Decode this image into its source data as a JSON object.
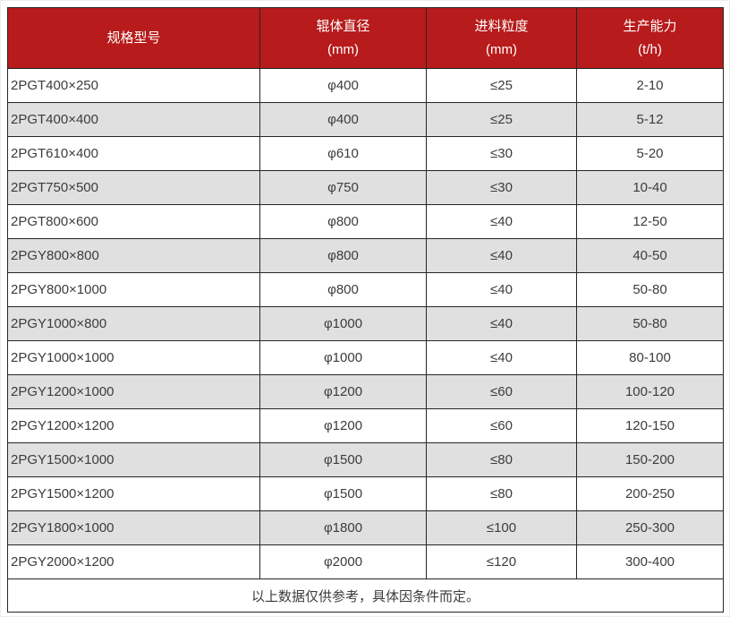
{
  "chart_data": {
    "type": "table",
    "columns": [
      {
        "label": "规格型号",
        "unit": ""
      },
      {
        "label": "辊体直径",
        "unit": "(mm)"
      },
      {
        "label": "进料粒度",
        "unit": "(mm)"
      },
      {
        "label": "生产能力",
        "unit": "(t/h)"
      }
    ],
    "rows": [
      [
        "2PGT400×250",
        "φ400",
        "≤25",
        "2-10"
      ],
      [
        "2PGT400×400",
        "φ400",
        "≤25",
        "5-12"
      ],
      [
        "2PGT610×400",
        "φ610",
        "≤30",
        "5-20"
      ],
      [
        "2PGT750×500",
        "φ750",
        "≤30",
        "10-40"
      ],
      [
        "2PGT800×600",
        "φ800",
        "≤40",
        "12-50"
      ],
      [
        "2PGY800×800",
        "φ800",
        "≤40",
        "40-50"
      ],
      [
        "2PGY800×1000",
        "φ800",
        "≤40",
        "50-80"
      ],
      [
        "2PGY1000×800",
        "φ1000",
        "≤40",
        "50-80"
      ],
      [
        "2PGY1000×1000",
        "φ1000",
        "≤40",
        "80-100"
      ],
      [
        "2PGY1200×1000",
        "φ1200",
        "≤60",
        "100-120"
      ],
      [
        "2PGY1200×1200",
        "φ1200",
        "≤60",
        "120-150"
      ],
      [
        "2PGY1500×1000",
        "φ1500",
        "≤80",
        "150-200"
      ],
      [
        "2PGY1500×1200",
        "φ1500",
        "≤80",
        "200-250"
      ],
      [
        "2PGY1800×1000",
        "φ1800",
        "≤100",
        "250-300"
      ],
      [
        "2PGY2000×1200",
        "φ2000",
        "≤120",
        "300-400"
      ]
    ],
    "footer_note": "以上数据仅供参考，具体因条件而定。"
  },
  "colors": {
    "header_bg": "#B71B1B",
    "header_text": "#FFFFFF",
    "zebra_row_bg": "#E0E0E0",
    "row_bg": "#FFFFFF",
    "border": "#262626",
    "body_text": "#3C3C3C"
  }
}
